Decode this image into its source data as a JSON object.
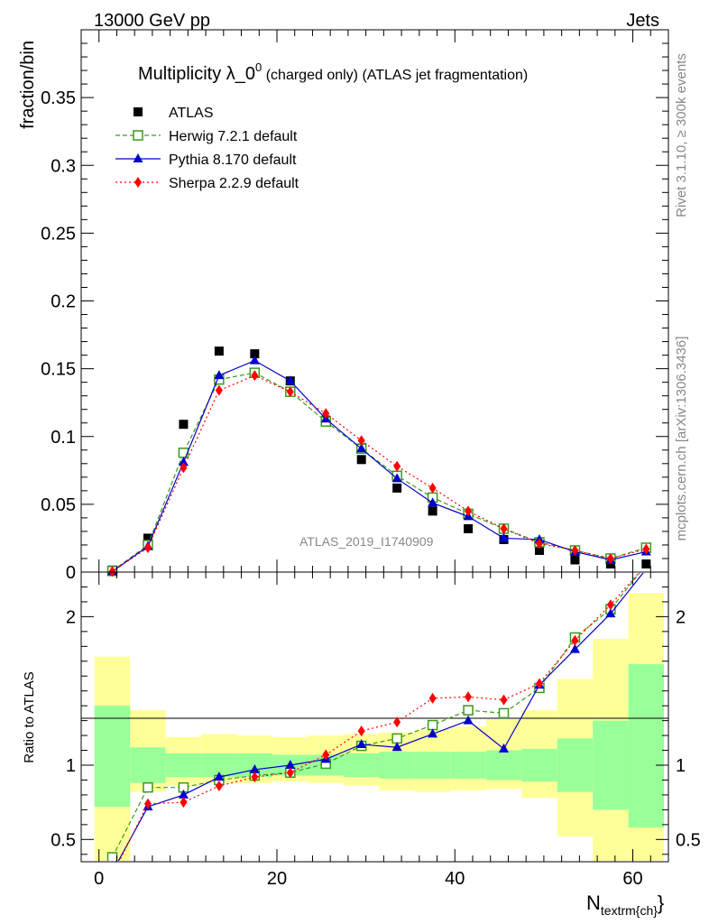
{
  "header": {
    "left": "13000 GeV pp",
    "right": "Jets"
  },
  "side_text": {
    "rivet": "Rivet 3.1.10, ≥ 300k events",
    "mcplots": "mcplots.cern.ch [arXiv:1306.3436]"
  },
  "watermark": "ATLAS_2019_I1740909",
  "chart_data": [
    {
      "type": "line",
      "title": "Multiplicity λ_0⁰ (charged only) (ATLAS jet fragmentation)",
      "title_main": "Multiplicity λ_0",
      "title_sup": "0",
      "title_rest": " (charged only) (ATLAS jet fragmentation)",
      "ylabel": "fraction/bin",
      "xlabel": "N",
      "xlabel_sub": "textrm{ch}",
      "xlim": [
        -2,
        64
      ],
      "ylim": [
        0,
        0.4
      ],
      "yticks": [
        0,
        0.05,
        0.1,
        0.15,
        0.2,
        0.25,
        0.3,
        0.35
      ],
      "ytick_labels": [
        "0",
        "0.05",
        "0.1",
        "0.15",
        "0.2",
        "0.25",
        "0.3",
        "0.35"
      ],
      "x": [
        1.5,
        5.5,
        9.5,
        13.5,
        17.5,
        21.5,
        25.5,
        29.5,
        33.5,
        37.5,
        41.5,
        45.5,
        49.5,
        53.5,
        57.5,
        61.5
      ],
      "legend_position": "top-left",
      "series": [
        {
          "name": "ATLAS",
          "color": "#000000",
          "marker": "square",
          "values": [
            0.0015,
            0.025,
            0.109,
            0.163,
            0.161,
            0.141,
            0.112,
            0.083,
            0.062,
            0.045,
            0.032,
            0.024,
            0.016,
            0.009,
            0.006,
            0.006
          ]
        },
        {
          "name": "Herwig 7.2.1 default",
          "color": "#3a9a1a",
          "marker": "open-square",
          "dash": "dashed",
          "values": [
            0.0008,
            0.02,
            0.088,
            0.142,
            0.147,
            0.133,
            0.111,
            0.091,
            0.071,
            0.055,
            0.043,
            0.032,
            0.022,
            0.016,
            0.01,
            0.018
          ]
        },
        {
          "name": "Pythia 8.170 default",
          "color": "#0000cc",
          "marker": "triangle",
          "dash": "solid",
          "values": [
            0.0004,
            0.019,
            0.081,
            0.145,
            0.156,
            0.141,
            0.113,
            0.091,
            0.069,
            0.051,
            0.041,
            0.025,
            0.024,
            0.015,
            0.009,
            0.015
          ]
        },
        {
          "name": "Sherpa 2.2.9 default",
          "color": "#ff0000",
          "marker": "diamond",
          "dash": "dotted",
          "values": [
            0.0004,
            0.018,
            0.077,
            0.134,
            0.145,
            0.133,
            0.117,
            0.097,
            0.078,
            0.062,
            0.045,
            0.032,
            0.021,
            0.016,
            0.01,
            0.017
          ]
        }
      ]
    },
    {
      "type": "line",
      "ylabel": "Ratio to ATLAS",
      "xlim": [
        -2,
        64
      ],
      "ylim": [
        0.35,
        2.3
      ],
      "xticks": [
        0,
        20,
        40,
        60
      ],
      "xtick_labels": [
        "0",
        "20",
        "40",
        "60"
      ],
      "yticks": [
        0.5,
        1,
        2
      ],
      "ytick_labels": [
        "0.5",
        "1",
        "2"
      ],
      "reference_line": 1,
      "bands": {
        "edges": [
          -0.5,
          3.5,
          7.5,
          11.5,
          15.5,
          19.5,
          23.5,
          27.5,
          31.5,
          35.5,
          39.5,
          43.5,
          47.5,
          51.5,
          55.5,
          59.5,
          63.5
        ],
        "stat_color": "#99ff99",
        "total_color": "#ffff99",
        "stat_low": [
          0.72,
          0.88,
          0.92,
          0.92,
          0.92,
          0.93,
          0.93,
          0.92,
          0.91,
          0.91,
          0.91,
          0.9,
          0.89,
          0.82,
          0.7,
          0.58
        ],
        "stat_high": [
          1.4,
          1.12,
          1.08,
          1.08,
          1.08,
          1.07,
          1.07,
          1.08,
          1.09,
          1.09,
          1.09,
          1.1,
          1.11,
          1.18,
          1.3,
          1.68
        ],
        "total_low": [
          0.35,
          0.82,
          0.86,
          0.88,
          0.88,
          0.89,
          0.88,
          0.86,
          0.83,
          0.82,
          0.83,
          0.84,
          0.78,
          0.52,
          0.35,
          0.35
        ],
        "total_high": [
          1.73,
          1.37,
          1.19,
          1.21,
          1.2,
          1.19,
          1.2,
          1.21,
          1.22,
          1.24,
          1.26,
          1.31,
          1.37,
          1.58,
          1.85,
          2.16
        ]
      },
      "series": [
        {
          "name": "Herwig 7.2.1 default",
          "color": "#3a9a1a",
          "values": [
            0.38,
            0.85,
            0.85,
            0.9,
            0.93,
            0.95,
            1.01,
            1.13,
            1.18,
            1.27,
            1.37,
            1.35,
            1.52,
            1.86,
            2.05,
            2.35
          ]
        },
        {
          "name": "Pythia 8.170 default",
          "color": "#0000cc",
          "values": [
            0.28,
            0.72,
            0.8,
            0.92,
            0.97,
            1.0,
            1.04,
            1.14,
            1.12,
            1.21,
            1.3,
            1.11,
            1.54,
            1.78,
            2.02,
            2.32
          ]
        },
        {
          "name": "Sherpa 2.2.9 default",
          "color": "#ff0000",
          "values": [
            0.26,
            0.74,
            0.75,
            0.86,
            0.92,
            0.95,
            1.07,
            1.23,
            1.29,
            1.45,
            1.46,
            1.44,
            1.55,
            1.84,
            2.08,
            2.35
          ]
        }
      ]
    }
  ]
}
